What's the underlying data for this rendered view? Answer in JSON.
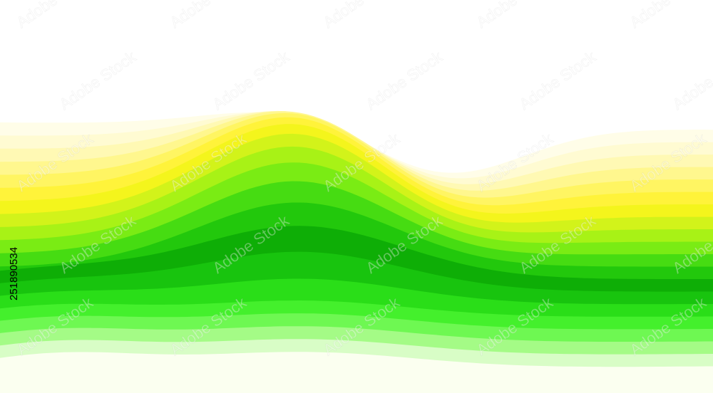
{
  "image_id": "251890534",
  "watermark": "Adobe Stock"
}
